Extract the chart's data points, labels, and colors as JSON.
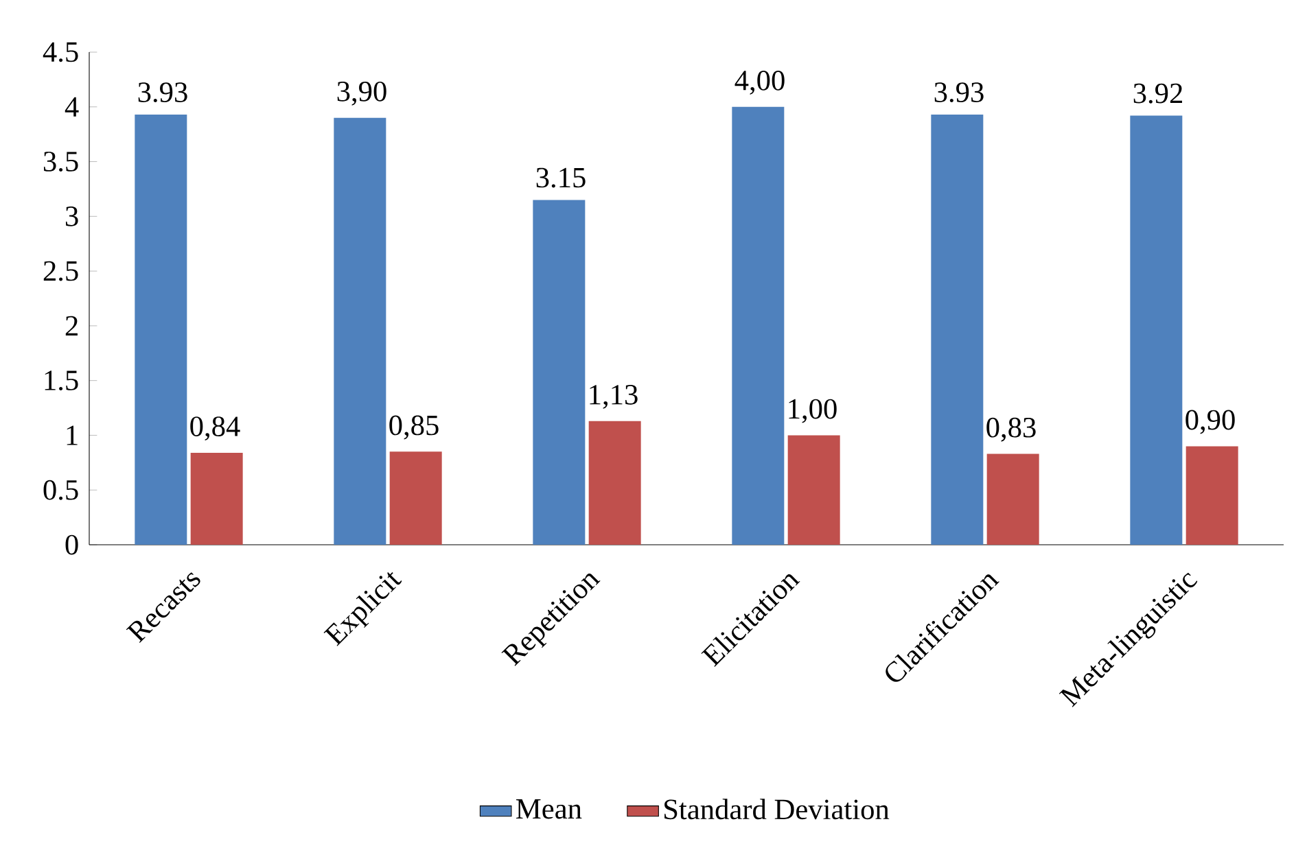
{
  "chart_data": {
    "type": "bar",
    "categories": [
      "Recasts",
      "Explicit",
      "Repetition",
      "Elicitation",
      "Clarification",
      "Meta-linguistic"
    ],
    "series": [
      {
        "name": "Mean",
        "color": "#4f81bd",
        "values": [
          3.93,
          3.9,
          3.15,
          4.0,
          3.93,
          3.92
        ],
        "value_labels": [
          "3.93",
          "3,90",
          "3.15",
          "4,00",
          "3.93",
          "3.92"
        ]
      },
      {
        "name": "Standard Deviation",
        "color": "#c0504d",
        "values": [
          0.84,
          0.85,
          1.13,
          1.0,
          0.83,
          0.9
        ],
        "value_labels": [
          "0,84",
          "0,85",
          "1,13",
          "1,00",
          "0,83",
          "0,90"
        ]
      }
    ],
    "ylim": [
      0,
      4.5
    ],
    "yticks": [
      0,
      0.5,
      1,
      1.5,
      2,
      2.5,
      3,
      3.5,
      4,
      4.5
    ],
    "grid": false,
    "legend": "bottom"
  }
}
